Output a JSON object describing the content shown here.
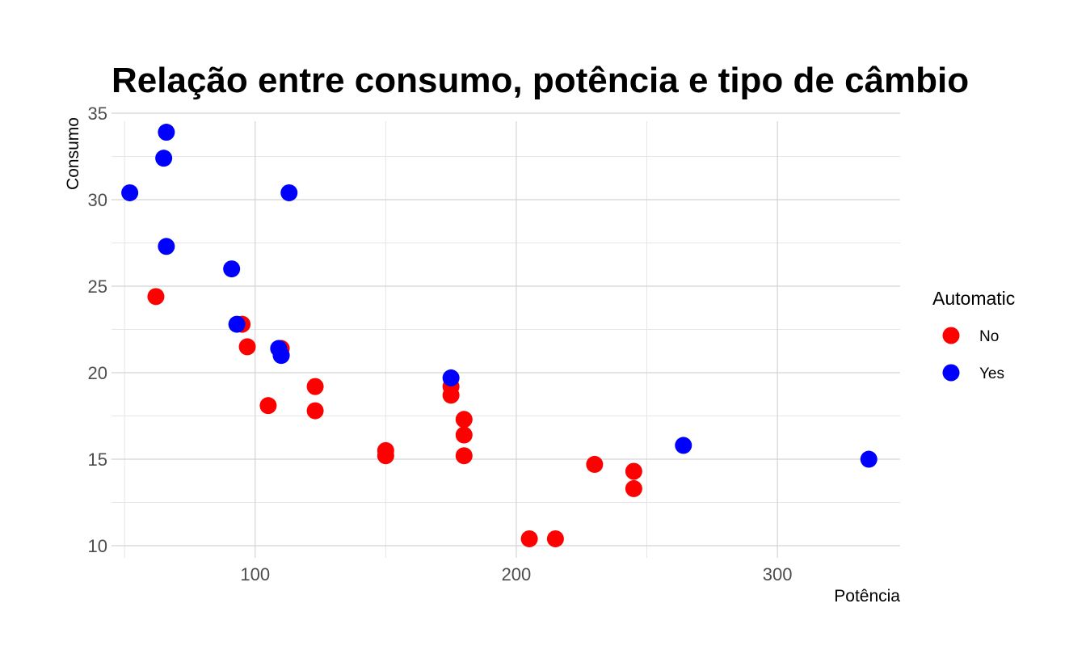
{
  "chart_data": {
    "type": "scatter",
    "title": "Relação entre consumo, potência e tipo de câmbio",
    "xlabel": "Potência",
    "ylabel": "Consumo",
    "xlim": [
      45,
      347
    ],
    "ylim": [
      9.3,
      35
    ],
    "x_ticks": [
      100,
      200,
      300
    ],
    "x_minor_ticks": [
      50,
      150,
      250
    ],
    "y_ticks": [
      10,
      15,
      20,
      25,
      30,
      35
    ],
    "y_minor_ticks": [
      12.5,
      17.5,
      22.5,
      27.5,
      32.5
    ],
    "grid": true,
    "legend": {
      "title": "Automatic",
      "placement": "right",
      "entries": [
        {
          "label": "No",
          "color": "#ff0000"
        },
        {
          "label": "Yes",
          "color": "#0000ff"
        }
      ]
    },
    "series": [
      {
        "name": "No",
        "color": "#ff0000",
        "points": [
          {
            "x": 62,
            "y": 24.4
          },
          {
            "x": 95,
            "y": 22.8
          },
          {
            "x": 97,
            "y": 21.5
          },
          {
            "x": 110,
            "y": 21.4
          },
          {
            "x": 105,
            "y": 18.1
          },
          {
            "x": 123,
            "y": 19.2
          },
          {
            "x": 123,
            "y": 17.8
          },
          {
            "x": 150,
            "y": 15.5
          },
          {
            "x": 150,
            "y": 15.2
          },
          {
            "x": 175,
            "y": 19.2
          },
          {
            "x": 175,
            "y": 18.7
          },
          {
            "x": 180,
            "y": 17.3
          },
          {
            "x": 180,
            "y": 16.4
          },
          {
            "x": 180,
            "y": 15.2
          },
          {
            "x": 205,
            "y": 10.4
          },
          {
            "x": 215,
            "y": 10.4
          },
          {
            "x": 230,
            "y": 14.7
          },
          {
            "x": 245,
            "y": 14.3
          },
          {
            "x": 245,
            "y": 13.3
          }
        ]
      },
      {
        "name": "Yes",
        "color": "#0000ff",
        "points": [
          {
            "x": 66,
            "y": 33.9
          },
          {
            "x": 52,
            "y": 30.4
          },
          {
            "x": 65,
            "y": 32.4
          },
          {
            "x": 113,
            "y": 30.4
          },
          {
            "x": 66,
            "y": 27.3
          },
          {
            "x": 91,
            "y": 26.0
          },
          {
            "x": 93,
            "y": 22.8
          },
          {
            "x": 109,
            "y": 21.4
          },
          {
            "x": 110,
            "y": 21.0
          },
          {
            "x": 110,
            "y": 21.0
          },
          {
            "x": 175,
            "y": 19.7
          },
          {
            "x": 264,
            "y": 15.8
          },
          {
            "x": 335,
            "y": 15.0
          }
        ]
      }
    ]
  }
}
